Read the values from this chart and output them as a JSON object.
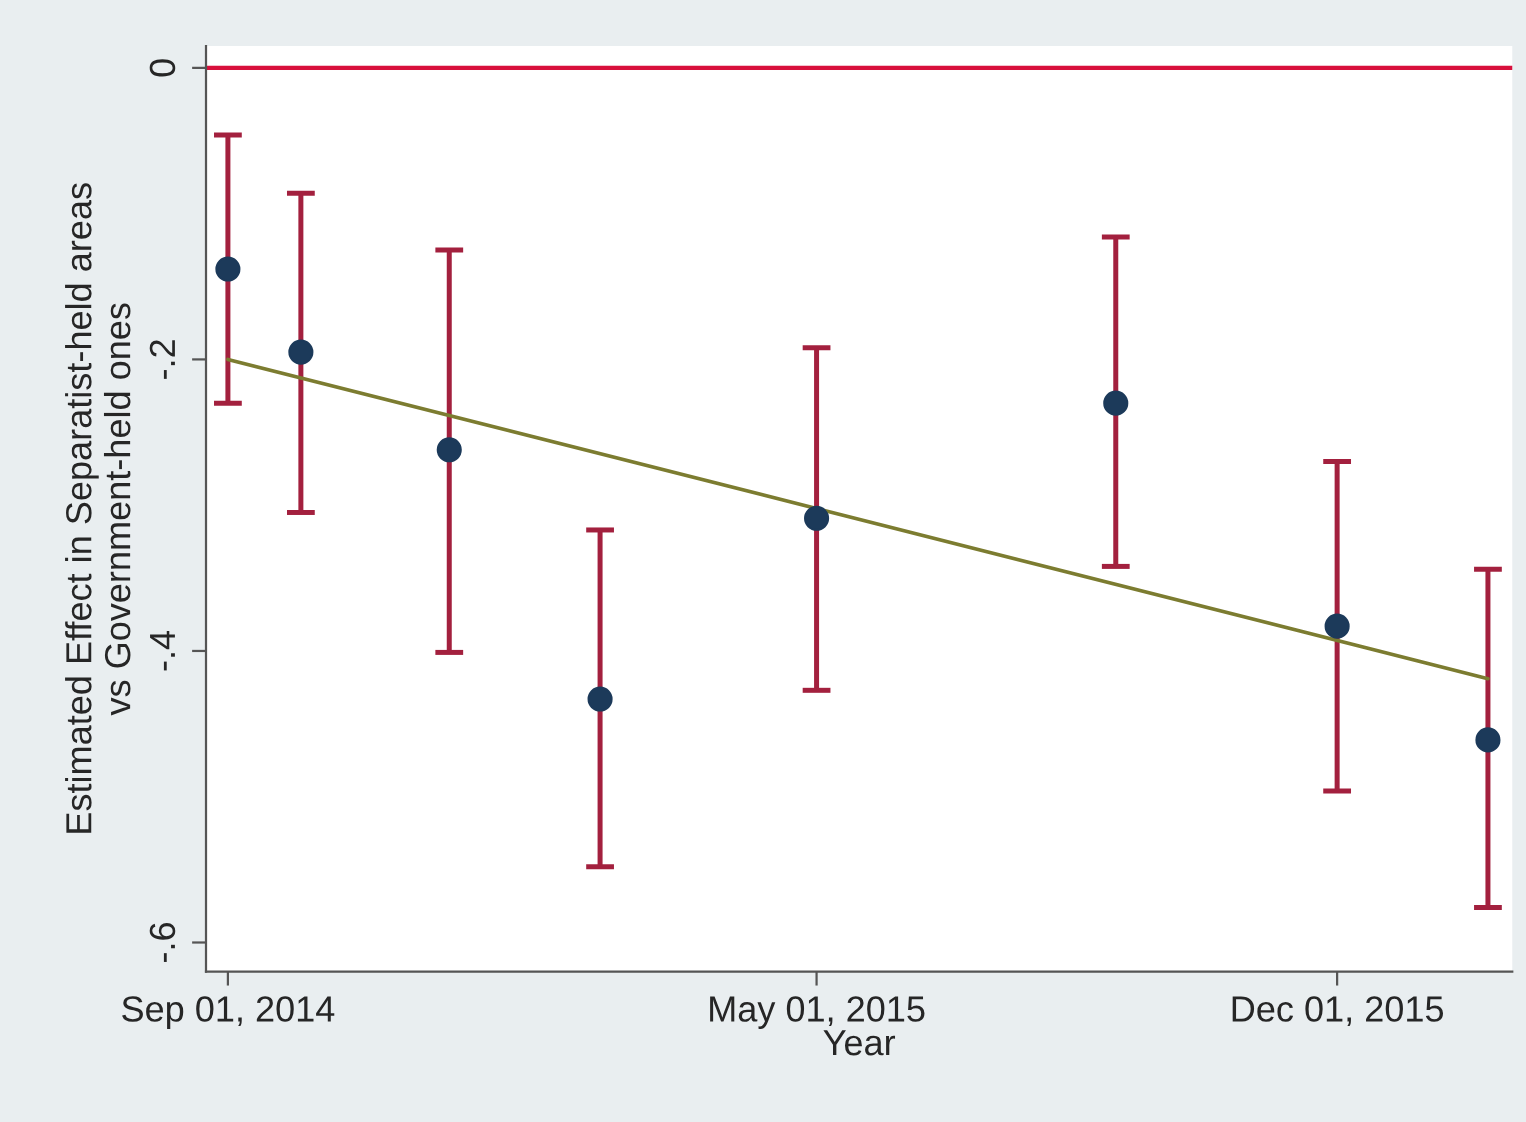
{
  "chart_data": {
    "type": "scatter",
    "xlabel": "Year",
    "ylabel": "Estimated Effect in Separatist-held areas\nvs Government-held ones",
    "series": [
      {
        "marker": "circle",
        "color": "#1c3a5a",
        "x": [
          "2014-09-01",
          "2014-10-01",
          "2014-12-01",
          "2015-02-01",
          "2015-05-01",
          "2015-09-01",
          "2015-12-01",
          "2016-02-01"
        ],
        "values": [
          -0.138,
          -0.195,
          -0.262,
          -0.433,
          -0.309,
          -0.23,
          -0.383,
          -0.461
        ],
        "errors": [
          [
            -0.23,
            -0.046
          ],
          [
            -0.305,
            -0.086
          ],
          [
            -0.401,
            -0.125
          ],
          [
            -0.548,
            -0.317
          ],
          [
            -0.427,
            -0.192
          ],
          [
            -0.342,
            -0.116
          ],
          [
            -0.496,
            -0.27
          ],
          [
            -0.576,
            -0.344
          ]
        ]
      },
      {
        "type": "line",
        "color": "#7c7c30",
        "x": [
          "2014-09-01",
          "2016-02-01"
        ],
        "values": [
          -0.2,
          -0.419
        ]
      }
    ],
    "ref_lines": [
      {
        "axis": "y",
        "value": 0,
        "color": "#d8103c"
      }
    ],
    "xlim": [
      "2014-08-23",
      "2016-02-11"
    ],
    "xticks": [
      {
        "value": "2014-09-01",
        "label": "Sep 01, 2014"
      },
      {
        "value": "2015-05-01",
        "label": "May 01, 2015"
      },
      {
        "value": "2015-12-01",
        "label": "Dec 01, 2015"
      }
    ],
    "ylim": [
      -0.62,
      0.015
    ],
    "yticks": [
      {
        "value": -0.6,
        "label": "-.6"
      },
      {
        "value": -0.4,
        "label": "-.4"
      },
      {
        "value": -0.2,
        "label": "-.2"
      },
      0
    ],
    "grid": false,
    "legend": false
  }
}
